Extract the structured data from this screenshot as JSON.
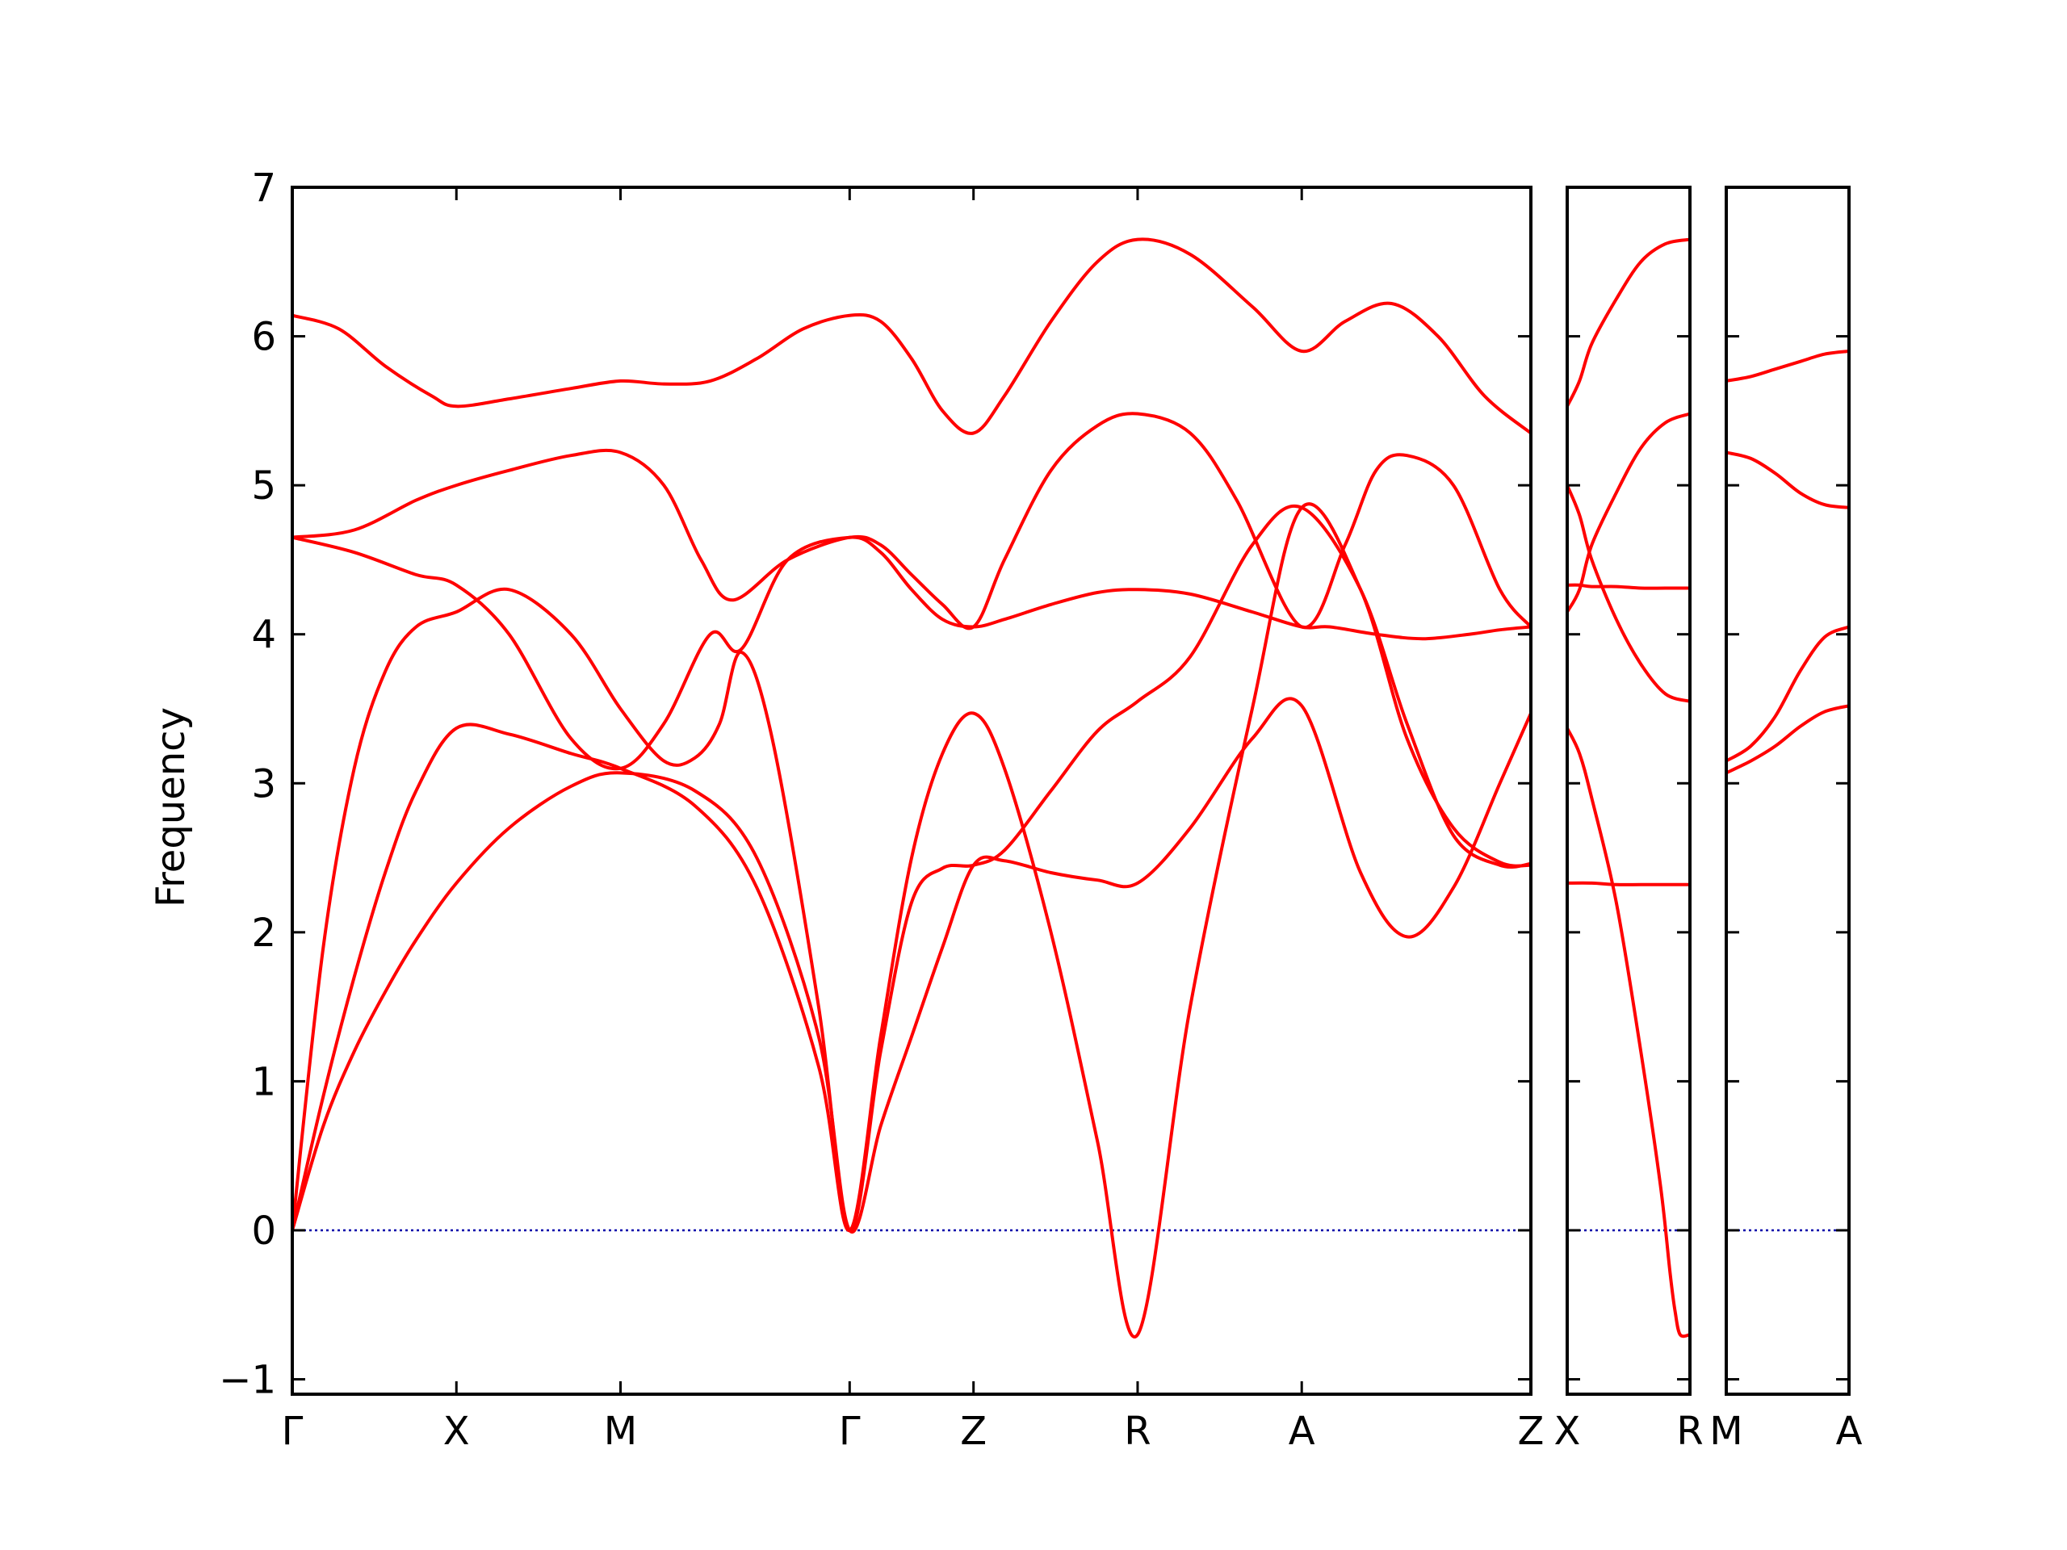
{
  "chart_data": {
    "type": "line",
    "ylabel": "Frequency",
    "ylim": [
      -1.1,
      7.0
    ],
    "yticks": [
      -1,
      0,
      1,
      2,
      3,
      4,
      5,
      6,
      7
    ],
    "ytick_labels": [
      "−1",
      "0",
      "1",
      "2",
      "3",
      "4",
      "5",
      "6",
      "7"
    ],
    "line_color": "#ff0000",
    "zero_line_color": "#0000aa",
    "zero_line": 0,
    "panels": [
      {
        "id": "main",
        "x_range": [
          0,
          4.0
        ],
        "high_symmetry_points": [
          {
            "x": 0.0,
            "label": "Γ"
          },
          {
            "x": 0.53,
            "label": "X"
          },
          {
            "x": 1.06,
            "label": "M"
          },
          {
            "x": 1.8,
            "label": "Γ"
          },
          {
            "x": 2.2,
            "label": "Z"
          },
          {
            "x": 2.73,
            "label": "R"
          },
          {
            "x": 3.26,
            "label": "A"
          },
          {
            "x": 4.0,
            "label": "Z"
          }
        ],
        "bands": [
          {
            "x": [
              0,
              0.1,
              0.2,
              0.3,
              0.4,
              0.53,
              0.7,
              0.9,
              1.06,
              1.3,
              1.5,
              1.7,
              1.8,
              1.9,
              2.0,
              2.1,
              2.2,
              2.3,
              2.45,
              2.6,
              2.73,
              2.9,
              3.1,
              3.26,
              3.45,
              3.6,
              3.75,
              3.9,
              4.0
            ],
            "y": [
              0,
              0.7,
              1.2,
              1.6,
              1.95,
              2.33,
              2.7,
              2.98,
              3.07,
              2.95,
              2.5,
              1.3,
              0,
              0.7,
              1.3,
              1.9,
              2.45,
              2.48,
              2.4,
              2.35,
              2.33,
              2.7,
              3.3,
              3.52,
              2.4,
              1.97,
              2.3,
              3.0,
              3.47
            ]
          },
          {
            "x": [
              0,
              0.1,
              0.2,
              0.3,
              0.4,
              0.53,
              0.7,
              0.9,
              1.06,
              1.3,
              1.5,
              1.7,
              1.8,
              1.9,
              2.0,
              2.1,
              2.2,
              2.3,
              2.45,
              2.6,
              2.73,
              2.9,
              3.1,
              3.26,
              3.45,
              3.6,
              3.75,
              3.9,
              4.0
            ],
            "y": [
              0,
              0.9,
              1.7,
              2.4,
              2.95,
              3.37,
              3.33,
              3.2,
              3.1,
              2.85,
              2.3,
              1.1,
              0,
              1.3,
              2.5,
              3.2,
              3.47,
              3.1,
              2.0,
              0.6,
              -0.7,
              1.5,
              3.5,
              4.85,
              4.3,
              3.3,
              2.7,
              2.47,
              2.45
            ]
          },
          {
            "x": [
              0,
              0.1,
              0.2,
              0.3,
              0.4,
              0.53,
              0.7,
              0.9,
              1.06,
              1.2,
              1.3,
              1.38,
              1.45,
              1.55,
              1.7,
              1.8,
              1.9,
              2.0,
              2.1,
              2.2,
              2.3,
              2.45,
              2.6,
              2.73,
              2.9,
              3.1,
              3.26,
              3.45,
              3.6,
              3.75,
              3.9,
              4.0
            ],
            "y": [
              0,
              1.9,
              3.1,
              3.75,
              4.05,
              4.15,
              4.3,
              4.0,
              3.5,
              3.15,
              3.17,
              3.4,
              3.88,
              3.3,
              1.5,
              0,
              1.2,
              2.2,
              2.43,
              2.45,
              2.55,
              2.95,
              3.35,
              3.55,
              3.85,
              4.6,
              4.85,
              4.3,
              3.4,
              2.65,
              2.45,
              2.46
            ]
          },
          {
            "x": [
              0,
              0.2,
              0.4,
              0.53,
              0.7,
              0.9,
              1.06,
              1.2,
              1.35,
              1.45,
              1.6,
              1.8,
              1.9,
              2.0,
              2.1,
              2.2,
              2.3,
              2.45,
              2.6,
              2.73,
              2.9,
              3.1,
              3.26,
              3.35,
              3.5,
              3.65,
              3.8,
              3.9,
              4.0
            ],
            "y": [
              4.65,
              4.55,
              4.4,
              4.33,
              4.0,
              3.3,
              3.1,
              3.4,
              4.0,
              3.9,
              4.5,
              4.65,
              4.55,
              4.3,
              4.1,
              4.05,
              4.1,
              4.2,
              4.28,
              4.3,
              4.27,
              4.15,
              4.05,
              4.05,
              4.0,
              3.97,
              4.0,
              4.03,
              4.05
            ]
          },
          {
            "x": [
              0,
              0.2,
              0.4,
              0.53,
              0.7,
              0.9,
              1.06,
              1.2,
              1.32,
              1.42,
              1.6,
              1.8,
              1.9,
              2.0,
              2.1,
              2.2,
              2.3,
              2.45,
              2.6,
              2.73,
              2.9,
              3.05,
              3.26,
              3.4,
              3.5,
              3.6,
              3.75,
              3.9,
              4.0
            ],
            "y": [
              4.65,
              4.7,
              4.9,
              5.0,
              5.1,
              5.2,
              5.22,
              5.0,
              4.5,
              4.23,
              4.5,
              4.65,
              4.6,
              4.4,
              4.2,
              4.05,
              4.5,
              5.1,
              5.4,
              5.48,
              5.35,
              4.9,
              4.05,
              4.6,
              5.1,
              5.2,
              5.0,
              4.3,
              4.05
            ]
          },
          {
            "x": [
              0,
              0.15,
              0.3,
              0.45,
              0.53,
              0.7,
              0.9,
              1.06,
              1.2,
              1.35,
              1.5,
              1.65,
              1.8,
              1.9,
              2.0,
              2.1,
              2.2,
              2.3,
              2.45,
              2.6,
              2.73,
              2.9,
              3.1,
              3.26,
              3.4,
              3.55,
              3.7,
              3.85,
              4.0
            ],
            "y": [
              6.14,
              6.05,
              5.8,
              5.6,
              5.53,
              5.58,
              5.65,
              5.7,
              5.68,
              5.7,
              5.85,
              6.05,
              6.14,
              6.1,
              5.85,
              5.5,
              5.35,
              5.6,
              6.1,
              6.5,
              6.65,
              6.55,
              6.2,
              5.9,
              6.1,
              6.22,
              6.0,
              5.6,
              5.35
            ]
          }
        ]
      },
      {
        "id": "X-R",
        "x_range": [
          0,
          0.5
        ],
        "high_symmetry_points": [
          {
            "x": 0.0,
            "label": "X"
          },
          {
            "x": 0.5,
            "label": "R"
          }
        ],
        "bands": [
          {
            "x": [
              0,
              0.1,
              0.2,
              0.3,
              0.4,
              0.5
            ],
            "y": [
              2.33,
              2.33,
              2.32,
              2.32,
              2.32,
              2.32
            ]
          },
          {
            "x": [
              0,
              0.05,
              0.1,
              0.2,
              0.3,
              0.38,
              0.42,
              0.44,
              0.46,
              0.5
            ],
            "y": [
              3.37,
              3.2,
              2.9,
              2.2,
              1.2,
              0.3,
              -0.3,
              -0.55,
              -0.7,
              -0.7
            ]
          },
          {
            "x": [
              0,
              0.05,
              0.1,
              0.2,
              0.3,
              0.4,
              0.5
            ],
            "y": [
              4.15,
              4.3,
              4.6,
              4.95,
              5.25,
              5.42,
              5.48
            ]
          },
          {
            "x": [
              0,
              0.05,
              0.1,
              0.2,
              0.3,
              0.4,
              0.5
            ],
            "y": [
              4.33,
              4.33,
              4.32,
              4.32,
              4.31,
              4.31,
              4.31
            ]
          },
          {
            "x": [
              0,
              0.05,
              0.1,
              0.2,
              0.3,
              0.4,
              0.5
            ],
            "y": [
              5.0,
              4.8,
              4.5,
              4.1,
              3.8,
              3.6,
              3.55
            ]
          },
          {
            "x": [
              0,
              0.05,
              0.1,
              0.2,
              0.3,
              0.4,
              0.5
            ],
            "y": [
              5.53,
              5.7,
              5.95,
              6.25,
              6.5,
              6.62,
              6.65
            ]
          }
        ]
      },
      {
        "id": "M-A",
        "x_range": [
          0,
          0.5
        ],
        "high_symmetry_points": [
          {
            "x": 0.0,
            "label": "M"
          },
          {
            "x": 0.5,
            "label": "A"
          }
        ],
        "bands": [
          {
            "x": [
              0,
              0.1,
              0.2,
              0.3,
              0.4,
              0.5
            ],
            "y": [
              3.07,
              3.15,
              3.25,
              3.38,
              3.48,
              3.52
            ]
          },
          {
            "x": [
              0,
              0.1,
              0.2,
              0.3,
              0.4,
              0.5
            ],
            "y": [
              3.15,
              3.25,
              3.45,
              3.75,
              3.98,
              4.05
            ]
          },
          {
            "x": [
              0,
              0.1,
              0.2,
              0.3,
              0.4,
              0.5
            ],
            "y": [
              5.22,
              5.18,
              5.08,
              4.95,
              4.87,
              4.85
            ]
          },
          {
            "x": [
              0,
              0.1,
              0.2,
              0.3,
              0.4,
              0.5
            ],
            "y": [
              5.7,
              5.73,
              5.78,
              5.83,
              5.88,
              5.9
            ]
          }
        ]
      }
    ]
  }
}
